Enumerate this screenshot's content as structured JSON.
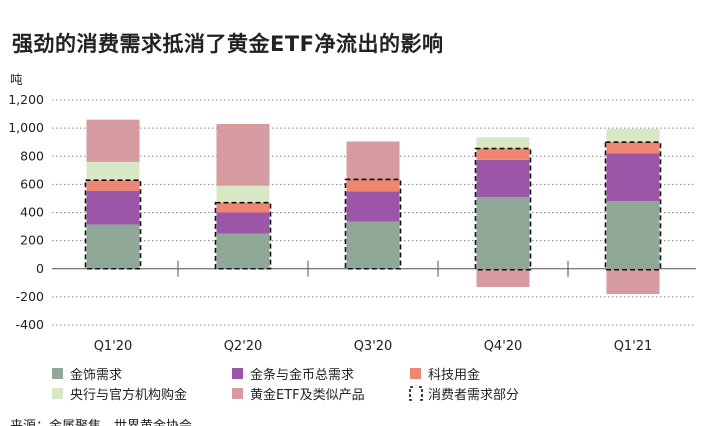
{
  "chart_data": {
    "type": "bar",
    "stacked": true,
    "title": "强劲的消费需求抵消了黄金ETF净流出的影响",
    "ylabel": "吨",
    "ylim": [
      -400,
      1200
    ],
    "yticks": [
      "1,200",
      "1,000",
      "800",
      "600",
      "400",
      "200",
      "0",
      "-200",
      "-400"
    ],
    "ytick_values": [
      1200,
      1000,
      800,
      600,
      400,
      200,
      0,
      -200,
      -400
    ],
    "categories": [
      "Q1'20",
      "Q2'20",
      "Q3'20",
      "Q4'20",
      "Q1'21"
    ],
    "series": [
      {
        "name": "金饰需求",
        "color": "#8fa898",
        "values": [
          315,
          250,
          335,
          510,
          480
        ]
      },
      {
        "name": "金条与金币总需求",
        "color": "#9c56a8",
        "values": [
          240,
          150,
          215,
          265,
          340
        ]
      },
      {
        "name": "科技用金",
        "color": "#ef8671",
        "values": [
          75,
          70,
          85,
          80,
          80
        ]
      },
      {
        "name": "央行与官方机构购金",
        "color": "#d8e8c4",
        "values": [
          130,
          120,
          0,
          80,
          95
        ]
      },
      {
        "name": "黄金ETF及类似产品",
        "color": "#d69ba0",
        "values": [
          300,
          440,
          270,
          -130,
          -180
        ]
      }
    ],
    "consumer_demand": {
      "name": "消费者需求部分",
      "values": [
        630,
        470,
        635,
        855,
        900
      ]
    },
    "grid": "horizontal-dotted",
    "legend_placement": "bottom",
    "source": "来源：金属聚焦，世界黄金协会"
  }
}
